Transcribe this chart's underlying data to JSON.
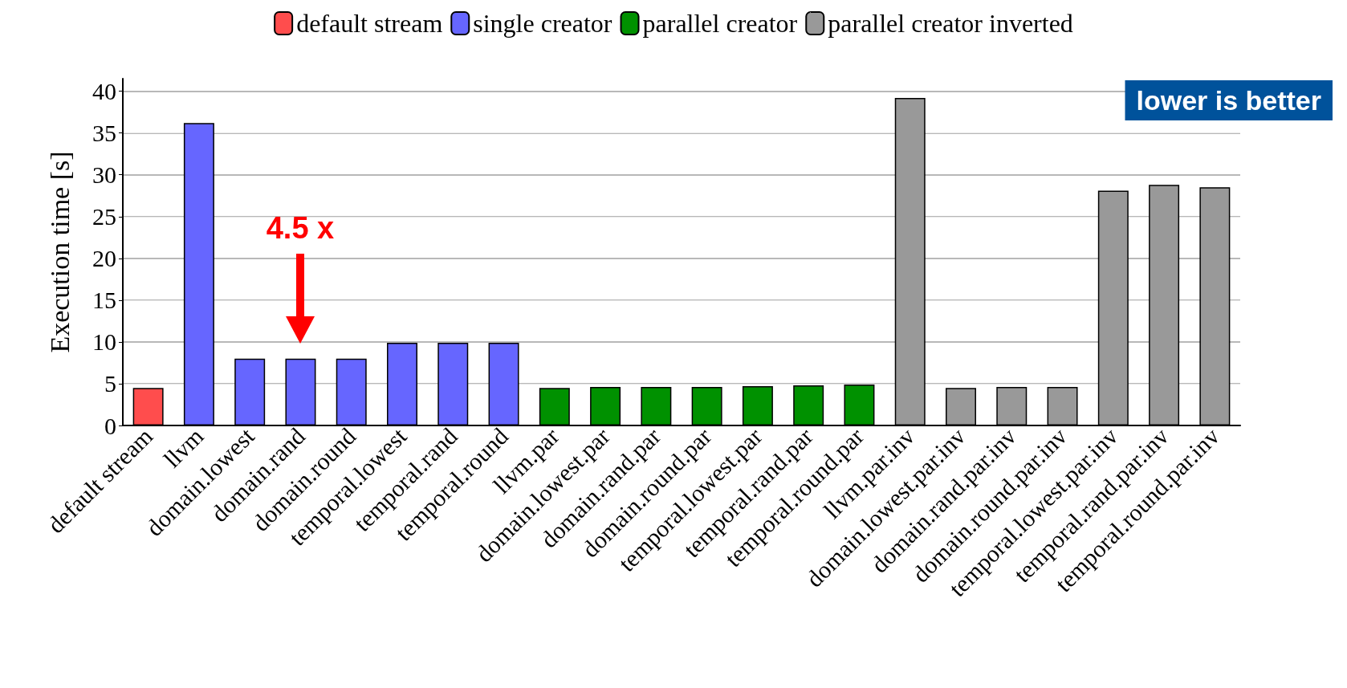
{
  "chart_data": {
    "type": "bar",
    "ylabel": "Execution time [s]",
    "categories": [
      "default stream",
      "llvm",
      "domain.lowest",
      "domain.rand",
      "domain.round",
      "temporal.lowest",
      "temporal.rand",
      "temporal.round",
      "llvm.par",
      "domain.lowest.par",
      "domain.rand.par",
      "domain.round.par",
      "temporal.lowest.par",
      "temporal.rand.par",
      "temporal.round.par",
      "llvm.par.inv",
      "domain.lowest.par.inv",
      "domain.rand.par.inv",
      "domain.round.par.inv",
      "temporal.lowest.par.inv",
      "temporal.rand.par.inv",
      "temporal.round.par.inv"
    ],
    "series": [
      {
        "name": "default stream",
        "color": "#ff4d4d",
        "values": [
          4.5,
          null,
          null,
          null,
          null,
          null,
          null,
          null,
          null,
          null,
          null,
          null,
          null,
          null,
          null,
          null,
          null,
          null,
          null,
          null,
          null,
          null
        ]
      },
      {
        "name": "single creator",
        "color": "#6666ff",
        "values": [
          null,
          36.2,
          8.0,
          8.0,
          8.0,
          9.9,
          9.9,
          9.9,
          null,
          null,
          null,
          null,
          null,
          null,
          null,
          null,
          null,
          null,
          null,
          null,
          null,
          null
        ]
      },
      {
        "name": "parallel creator",
        "color": "#009100",
        "values": [
          null,
          null,
          null,
          null,
          null,
          null,
          null,
          null,
          4.5,
          4.6,
          4.6,
          4.6,
          4.7,
          4.8,
          4.9,
          null,
          null,
          null,
          null,
          null,
          null,
          null
        ]
      },
      {
        "name": "parallel creator inverted",
        "color": "#999999",
        "values": [
          null,
          null,
          null,
          null,
          null,
          null,
          null,
          null,
          null,
          null,
          null,
          null,
          null,
          null,
          null,
          39.2,
          4.5,
          4.6,
          4.6,
          28.1,
          28.8,
          28.5
        ]
      }
    ],
    "ylim": [
      0,
      41.5
    ],
    "yticks": [
      0,
      5,
      10,
      15,
      20,
      25,
      30,
      35,
      40
    ],
    "grid": "y",
    "legend": "top",
    "annotations": [
      "4.5 x",
      "lower is better"
    ]
  }
}
